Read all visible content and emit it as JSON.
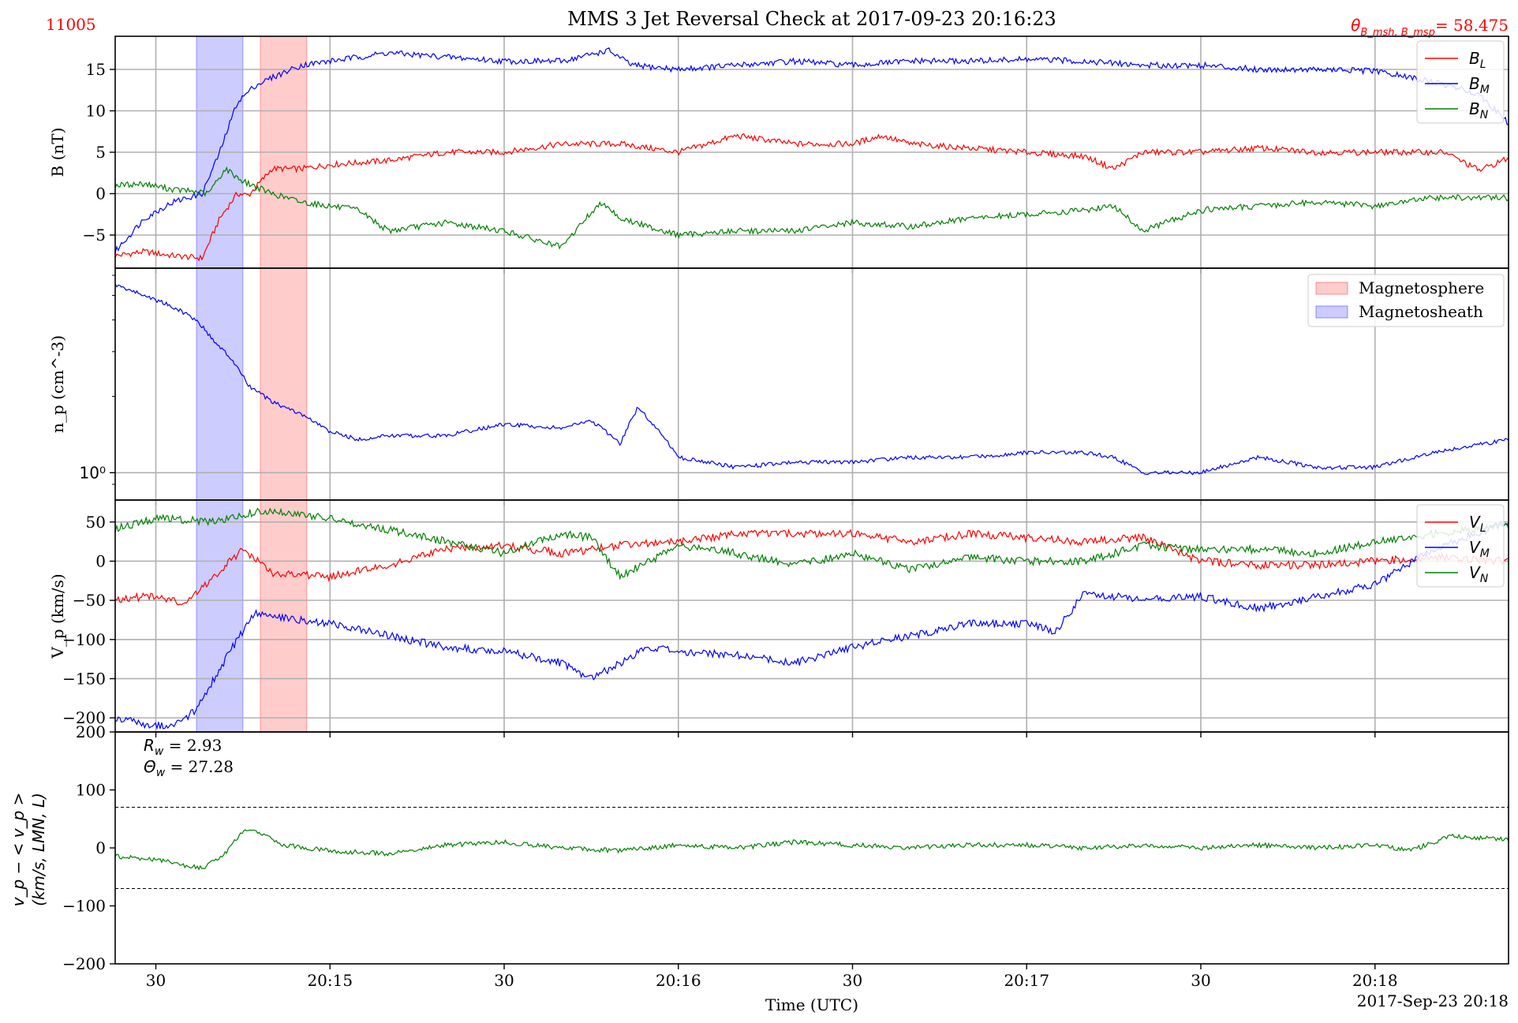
{
  "figure": {
    "id_label": "11005",
    "title": "MMS 3 Jet Reversal Check at 2017-09-23 20:16:23",
    "theta_label": "θ",
    "theta_sub": "B_msh, B_msp",
    "theta_value": "= 58.475",
    "xlabel": "Time (UTC)",
    "date_label": "2017-Sep-23 20:18",
    "colors": {
      "red": "#ff0000",
      "blue": "#0000ff",
      "green": "#008000",
      "grid": "#b0b0b0",
      "magnetosphere": "#ff9999",
      "magnetosheath": "#9999ff"
    }
  },
  "chart_data": [
    {
      "type": "line",
      "panel": "magnetic_field",
      "ylabel": "B (nT)",
      "ylim": [
        -9,
        19
      ],
      "yticks": [
        -5,
        0,
        5,
        10,
        15
      ],
      "ytick_labels": [
        "−5",
        "0",
        "5",
        "10",
        "15"
      ],
      "xlim": [
        "20:14:23",
        "20:18:23"
      ],
      "xticks": [
        "20:14:30",
        "20:15:00",
        "20:15:30",
        "20:16:00",
        "20:16:30",
        "20:17:00",
        "20:17:30",
        "20:18:00"
      ],
      "xtick_labels": [
        "30",
        "20:15",
        "30",
        "20:16",
        "30",
        "20:17",
        "30",
        "20:18"
      ],
      "grid": true,
      "legend": "top-right",
      "spans": [
        {
          "name": "Magnetosheath",
          "x0": "20:14:37",
          "x1": "20:14:45"
        },
        {
          "name": "Magnetosphere",
          "x0": "20:14:48",
          "x1": "20:14:56"
        }
      ],
      "series": [
        {
          "name": "B_L",
          "color": "#ff0000",
          "x": [
            "20:14:23",
            "20:14:28",
            "20:14:33",
            "20:14:38",
            "20:14:41",
            "20:14:44",
            "20:14:46",
            "20:14:50",
            "20:14:55",
            "20:15:00",
            "20:15:10",
            "20:15:20",
            "20:15:30",
            "20:15:40",
            "20:15:50",
            "20:16:00",
            "20:16:05",
            "20:16:10",
            "20:16:20",
            "20:16:30",
            "20:16:35",
            "20:16:40",
            "20:16:50",
            "20:17:00",
            "20:17:10",
            "20:17:15",
            "20:17:20",
            "20:17:30",
            "20:17:40",
            "20:17:50",
            "20:18:00",
            "20:18:06",
            "20:18:12",
            "20:18:18",
            "20:18:23"
          ],
          "values": [
            -7.5,
            -7,
            -7.5,
            -7.8,
            -3,
            0,
            -0.2,
            3,
            3,
            3.5,
            4,
            5,
            5,
            6,
            6,
            5,
            6,
            7,
            6,
            6,
            7,
            6,
            5.5,
            5,
            4.5,
            3,
            5,
            5,
            5.5,
            5,
            5,
            5,
            5,
            2.8,
            4.3
          ]
        },
        {
          "name": "B_M",
          "color": "#0000ff",
          "x": [
            "20:14:23",
            "20:14:28",
            "20:14:33",
            "20:14:38",
            "20:14:41",
            "20:14:44",
            "20:14:47",
            "20:14:50",
            "20:14:55",
            "20:15:00",
            "20:15:10",
            "20:15:20",
            "20:15:30",
            "20:15:40",
            "20:15:48",
            "20:15:52",
            "20:16:00",
            "20:16:10",
            "20:16:20",
            "20:16:30",
            "20:16:40",
            "20:16:50",
            "20:17:00",
            "20:17:10",
            "20:17:20",
            "20:17:30",
            "20:17:40",
            "20:17:50",
            "20:18:00",
            "20:18:10",
            "20:18:18",
            "20:18:23"
          ],
          "values": [
            -7,
            -3,
            -1,
            0,
            5,
            11,
            13,
            14,
            15.5,
            16,
            17,
            16.5,
            16,
            16,
            17.3,
            15.5,
            15,
            15.5,
            16,
            15.5,
            16,
            16,
            16.2,
            16,
            15.5,
            15.5,
            15,
            15,
            14.8,
            13.5,
            12,
            8.5
          ]
        },
        {
          "name": "B_N",
          "color": "#008000",
          "x": [
            "20:14:23",
            "20:14:28",
            "20:14:33",
            "20:14:36",
            "20:14:39",
            "20:14:42",
            "20:14:45",
            "20:14:50",
            "20:14:55",
            "20:15:00",
            "20:15:05",
            "20:15:10",
            "20:15:20",
            "20:15:30",
            "20:15:35",
            "20:15:40",
            "20:15:44",
            "20:15:47",
            "20:15:50",
            "20:16:00",
            "20:16:10",
            "20:16:20",
            "20:16:30",
            "20:16:40",
            "20:16:50",
            "20:17:00",
            "20:17:10",
            "20:17:15",
            "20:17:20",
            "20:17:30",
            "20:17:40",
            "20:17:50",
            "20:18:00",
            "20:18:10",
            "20:18:23"
          ],
          "values": [
            1,
            1.2,
            0.5,
            0.3,
            0,
            3,
            1.5,
            0,
            -1,
            -1.5,
            -2,
            -4.5,
            -3.5,
            -4.5,
            -5.5,
            -6.5,
            -3,
            -1,
            -3,
            -5,
            -4.5,
            -4.5,
            -3.5,
            -4,
            -3,
            -2.5,
            -2,
            -1.5,
            -4.5,
            -2,
            -1.5,
            -1,
            -1.5,
            -0.5,
            -0.5
          ]
        }
      ]
    },
    {
      "type": "line",
      "panel": "density",
      "ylabel": "n_p (cm^-3)",
      "yscale": "log",
      "ylim": [
        0.78,
        6.4
      ],
      "yticks": [
        1
      ],
      "ytick_labels": [
        "10⁰"
      ],
      "xlim": [
        "20:14:23",
        "20:18:23"
      ],
      "grid": true,
      "legend": "top-right",
      "legend_entries": [
        "Magnetosphere",
        "Magnetosheath"
      ],
      "series": [
        {
          "name": "n_p",
          "color": "#0000ff",
          "x": [
            "20:14:23",
            "20:14:28",
            "20:14:33",
            "20:14:37",
            "20:14:40",
            "20:14:43",
            "20:14:46",
            "20:14:50",
            "20:14:55",
            "20:15:00",
            "20:15:05",
            "20:15:10",
            "20:15:20",
            "20:15:30",
            "20:15:40",
            "20:15:45",
            "20:15:50",
            "20:15:53",
            "20:16:00",
            "20:16:10",
            "20:16:20",
            "20:16:30",
            "20:16:40",
            "20:16:50",
            "20:17:00",
            "20:17:10",
            "20:17:15",
            "20:17:20",
            "20:17:30",
            "20:17:40",
            "20:17:50",
            "20:18:00",
            "20:18:10",
            "20:18:23"
          ],
          "values": [
            5.5,
            5,
            4.5,
            4,
            3.3,
            2.8,
            2.2,
            1.9,
            1.7,
            1.45,
            1.35,
            1.4,
            1.4,
            1.55,
            1.5,
            1.6,
            1.3,
            1.8,
            1.15,
            1.05,
            1.1,
            1.1,
            1.15,
            1.15,
            1.2,
            1.2,
            1.15,
            1.0,
            1.0,
            1.15,
            1.05,
            1.05,
            1.2,
            1.35
          ]
        }
      ]
    },
    {
      "type": "line",
      "panel": "velocity",
      "ylabel": "V_p (km/s)",
      "ylim": [
        -218,
        78
      ],
      "yticks": [
        -200,
        -150,
        -100,
        -50,
        0,
        50
      ],
      "ytick_labels": [
        "−200",
        "−150",
        "−100",
        "−50",
        "0",
        "50"
      ],
      "xlim": [
        "20:14:23",
        "20:18:23"
      ],
      "grid": true,
      "legend": "top-right",
      "series": [
        {
          "name": "V_L",
          "color": "#ff0000",
          "x": [
            "20:14:23",
            "20:14:30",
            "20:14:35",
            "20:14:40",
            "20:14:45",
            "20:14:50",
            "20:15:00",
            "20:15:10",
            "20:15:20",
            "20:15:30",
            "20:15:40",
            "20:15:50",
            "20:16:00",
            "20:16:10",
            "20:16:20",
            "20:16:30",
            "20:16:40",
            "20:16:50",
            "20:17:00",
            "20:17:10",
            "20:17:20",
            "20:17:30",
            "20:17:40",
            "20:17:50",
            "20:18:00",
            "20:18:10",
            "20:18:23"
          ],
          "values": [
            -48,
            -45,
            -55,
            -20,
            15,
            -15,
            -20,
            -5,
            15,
            20,
            10,
            20,
            25,
            35,
            35,
            35,
            25,
            35,
            30,
            25,
            30,
            0,
            -5,
            -5,
            0,
            5,
            0
          ]
        },
        {
          "name": "V_M",
          "color": "#0000ff",
          "x": [
            "20:14:23",
            "20:14:28",
            "20:14:33",
            "20:14:37",
            "20:14:42",
            "20:14:47",
            "20:14:50",
            "20:15:00",
            "20:15:10",
            "20:15:20",
            "20:15:30",
            "20:15:40",
            "20:15:45",
            "20:15:50",
            "20:15:55",
            "20:16:00",
            "20:16:10",
            "20:16:20",
            "20:16:30",
            "20:16:40",
            "20:16:50",
            "20:17:00",
            "20:17:05",
            "20:17:10",
            "20:17:20",
            "20:17:30",
            "20:17:40",
            "20:17:50",
            "20:18:00",
            "20:18:10",
            "20:18:23"
          ],
          "values": [
            -200,
            -208,
            -210,
            -190,
            -125,
            -65,
            -70,
            -80,
            -95,
            -110,
            -115,
            -130,
            -150,
            -130,
            -110,
            -115,
            -120,
            -130,
            -110,
            -95,
            -80,
            -80,
            -90,
            -40,
            -50,
            -45,
            -60,
            -45,
            -30,
            15,
            50
          ]
        },
        {
          "name": "V_N",
          "color": "#008000",
          "x": [
            "20:14:23",
            "20:14:30",
            "20:14:40",
            "20:14:45",
            "20:14:50",
            "20:15:00",
            "20:15:10",
            "20:15:20",
            "20:15:30",
            "20:15:40",
            "20:15:45",
            "20:15:50",
            "20:16:00",
            "20:16:10",
            "20:16:20",
            "20:16:30",
            "20:16:40",
            "20:16:50",
            "20:17:00",
            "20:17:10",
            "20:17:20",
            "20:17:30",
            "20:17:40",
            "20:17:50",
            "20:18:00",
            "20:18:10",
            "20:18:23"
          ],
          "values": [
            42,
            55,
            50,
            60,
            65,
            55,
            40,
            25,
            10,
            35,
            30,
            -20,
            20,
            10,
            -5,
            10,
            -10,
            5,
            0,
            0,
            20,
            15,
            15,
            10,
            25,
            35,
            45
          ]
        }
      ]
    },
    {
      "type": "line",
      "panel": "walen",
      "ylabel_line1": "v_p − < v_p >",
      "ylabel_line2": "(km/s, LMN, L)",
      "ylim": [
        -200,
        200
      ],
      "yticks": [
        -200,
        -100,
        0,
        100,
        200
      ],
      "ytick_labels": [
        "−200",
        "−100",
        "0",
        "100",
        "200"
      ],
      "xlim": [
        "20:14:23",
        "20:18:23"
      ],
      "grid": false,
      "hlines": [
        70,
        -70
      ],
      "annotations": [
        {
          "label": "R",
          "sub": "w",
          "value": "= 2.93"
        },
        {
          "label": "Θ",
          "sub": "w",
          "value": "= 27.28"
        }
      ],
      "series": [
        {
          "name": "residual",
          "color": "#008000",
          "x": [
            "20:14:23",
            "20:14:30",
            "20:14:35",
            "20:14:38",
            "20:14:42",
            "20:14:45",
            "20:14:48",
            "20:14:52",
            "20:15:00",
            "20:15:10",
            "20:15:20",
            "20:15:30",
            "20:15:40",
            "20:15:50",
            "20:16:00",
            "20:16:10",
            "20:16:20",
            "20:16:30",
            "20:16:40",
            "20:16:50",
            "20:17:00",
            "20:17:10",
            "20:17:20",
            "20:17:30",
            "20:17:40",
            "20:17:50",
            "20:18:00",
            "20:18:06",
            "20:18:13",
            "20:18:23"
          ],
          "values": [
            -15,
            -20,
            -30,
            -35,
            -10,
            30,
            25,
            5,
            -5,
            -10,
            5,
            10,
            0,
            -5,
            5,
            0,
            10,
            5,
            0,
            5,
            5,
            0,
            5,
            0,
            5,
            0,
            5,
            -5,
            20,
            15
          ]
        }
      ]
    }
  ]
}
